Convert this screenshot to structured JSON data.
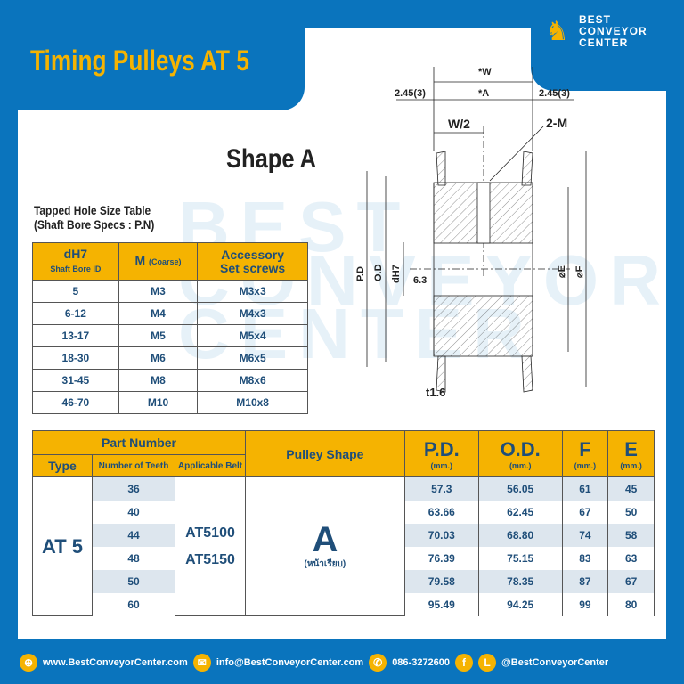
{
  "title": "Timing Pulleys AT 5",
  "logo": {
    "line1": "BEST",
    "line2": "CONVEYOR",
    "line3": "CENTER"
  },
  "shape_title": "Shape A",
  "drawing": {
    "w": "*W",
    "a": "*A",
    "side": "2.45(3)",
    "half": "W/2",
    "m": "2-M",
    "pd": "P.D",
    "od": "O.D",
    "dh7": "dH7",
    "rough": "6.3",
    "e": "⌀E",
    "f": "⌀F",
    "t": "t1.6"
  },
  "tapped": {
    "caption1": "Tapped Hole Size Table",
    "caption2": "(Shaft Bore Specs : P.N)",
    "h1": "dH7",
    "h1sub": "Shaft Bore ID",
    "h2": "M",
    "h2sub": "(Coarse)",
    "h3a": "Accessory",
    "h3b": "Set screws",
    "rows": [
      [
        "5",
        "M3",
        "M3x3"
      ],
      [
        "6-12",
        "M4",
        "M4x3"
      ],
      [
        "13-17",
        "M5",
        "M5x4"
      ],
      [
        "18-30",
        "M6",
        "M6x5"
      ],
      [
        "31-45",
        "M8",
        "M8x6"
      ],
      [
        "46-70",
        "M10",
        "M10x8"
      ]
    ]
  },
  "main": {
    "part_number": "Part Number",
    "type": "Type",
    "teeth": "Number of Teeth",
    "belt": "Applicable Belt",
    "shape": "Pulley Shape",
    "pd": "P.D.",
    "od": "O.D.",
    "f": "F",
    "e": "E",
    "unit": "(mm.)",
    "type_value": "AT 5",
    "belt1": "AT5100",
    "belt2": "AT5150",
    "shape_value": "A",
    "shape_note": "(หน้าเรียบ)",
    "rows": [
      [
        "36",
        "57.3",
        "56.05",
        "61",
        "45"
      ],
      [
        "40",
        "63.66",
        "62.45",
        "67",
        "50"
      ],
      [
        "44",
        "70.03",
        "68.80",
        "74",
        "58"
      ],
      [
        "48",
        "76.39",
        "75.15",
        "83",
        "63"
      ],
      [
        "50",
        "79.58",
        "78.35",
        "87",
        "67"
      ],
      [
        "60",
        "95.49",
        "94.25",
        "99",
        "80"
      ]
    ]
  },
  "footer": {
    "web": "www.BestConveyorCenter.com",
    "email": "info@BestConveyorCenter.com",
    "phone": "086-3272600",
    "social": "@BestConveyorCenter",
    "fb": "f",
    "line": "L"
  },
  "colors": {
    "blue": "#0a74bd",
    "orange": "#f5b301",
    "text": "#1f4e79"
  }
}
